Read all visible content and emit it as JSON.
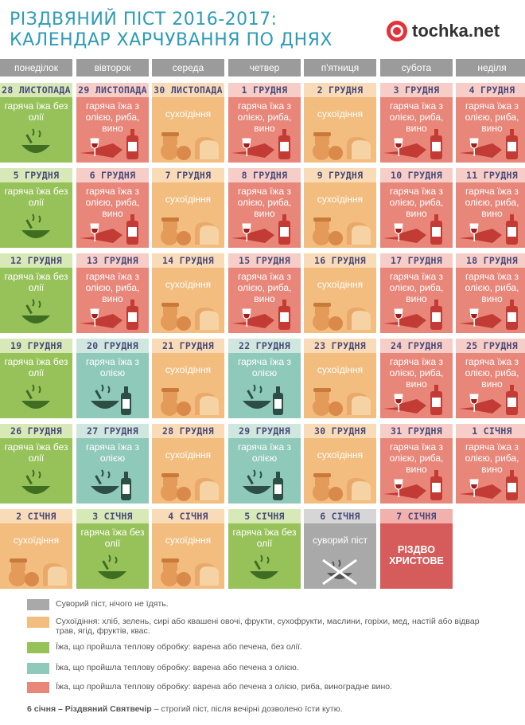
{
  "title": {
    "line1": "РІЗДВЯНИЙ ПІСТ 2016-2017:",
    "line2": "КАЛЕНДАР ХАРЧУВАННЯ ПО ДНЯХ"
  },
  "brand": {
    "name": "tochka.net"
  },
  "weekdays": [
    "понеділок",
    "вівторок",
    "середа",
    "четвер",
    "п'ятниця",
    "субота",
    "неділя"
  ],
  "labels": {
    "green": "гаряча їжа без олії",
    "red": "гаряча їжа з олією, риба, вино",
    "teal": "гаряча їжа з олією",
    "dry": "сухоїдіння",
    "gray": "суворий піст",
    "xmas": "РІЗДВО ХРИСТОВЕ"
  },
  "weeks": [
    [
      {
        "date": "28 ЛИСТОПАДА",
        "type": "green"
      },
      {
        "date": "29 ЛИСТОПАДА",
        "type": "red"
      },
      {
        "date": "30 ЛИСТОПАДА",
        "type": "dry"
      },
      {
        "date": "1 ГРУДНЯ",
        "type": "red"
      },
      {
        "date": "2 ГРУДНЯ",
        "type": "dry"
      },
      {
        "date": "3 ГРУДНЯ",
        "type": "red"
      },
      {
        "date": "4 ГРУДНЯ",
        "type": "red"
      }
    ],
    [
      {
        "date": "5 ГРУДНЯ",
        "type": "green"
      },
      {
        "date": "6 ГРУДНЯ",
        "type": "red"
      },
      {
        "date": "7 ГРУДНЯ",
        "type": "dry"
      },
      {
        "date": "8 ГРУДНЯ",
        "type": "red"
      },
      {
        "date": "9 ГРУДНЯ",
        "type": "dry"
      },
      {
        "date": "10 ГРУДНЯ",
        "type": "red"
      },
      {
        "date": "11 ГРУДНЯ",
        "type": "red"
      }
    ],
    [
      {
        "date": "12 ГРУДНЯ",
        "type": "green"
      },
      {
        "date": "13 ГРУДНЯ",
        "type": "red"
      },
      {
        "date": "14 ГРУДНЯ",
        "type": "dry"
      },
      {
        "date": "15 ГРУДНЯ",
        "type": "red"
      },
      {
        "date": "16 ГРУДНЯ",
        "type": "dry"
      },
      {
        "date": "17 ГРУДНЯ",
        "type": "red"
      },
      {
        "date": "18 ГРУДНЯ",
        "type": "red"
      }
    ],
    [
      {
        "date": "19 ГРУДНЯ",
        "type": "green"
      },
      {
        "date": "20 ГРУДНЯ",
        "type": "teal"
      },
      {
        "date": "21 ГРУДНЯ",
        "type": "dry"
      },
      {
        "date": "22 ГРУДНЯ",
        "type": "teal"
      },
      {
        "date": "23 ГРУДНЯ",
        "type": "dry"
      },
      {
        "date": "24 ГРУДНЯ",
        "type": "red"
      },
      {
        "date": "25 ГРУДНЯ",
        "type": "red"
      }
    ],
    [
      {
        "date": "26 ГРУДНЯ",
        "type": "green"
      },
      {
        "date": "27 ГРУДНЯ",
        "type": "teal"
      },
      {
        "date": "28 ГРУДНЯ",
        "type": "dry"
      },
      {
        "date": "29 ГРУДНЯ",
        "type": "teal"
      },
      {
        "date": "30 ГРУДНЯ",
        "type": "dry"
      },
      {
        "date": "31 ГРУДНЯ",
        "type": "red"
      },
      {
        "date": "1 СІЧНЯ",
        "type": "red"
      }
    ],
    [
      {
        "date": "2 СІЧНЯ",
        "type": "dry"
      },
      {
        "date": "3 СІЧНЯ",
        "type": "green"
      },
      {
        "date": "4 СІЧНЯ",
        "type": "dry"
      },
      {
        "date": "5 СІЧНЯ",
        "type": "green"
      },
      {
        "date": "6 СІЧНЯ",
        "type": "gray"
      },
      {
        "date": "7 СІЧНЯ",
        "type": "xmas"
      }
    ]
  ],
  "legend": [
    {
      "type": "gray",
      "text": "Суворий піст, нічого не їдять."
    },
    {
      "type": "dry",
      "text": "Сухоїдіння: хліб, зелень, сирі або квашені овочі, фрукти, сухофрукти, маслини, горіхи, мед, настій або відвар трав, ягід, фруктів, квас."
    },
    {
      "type": "green",
      "text": "Їжа, що пройшла теплову обробку: варена або печена, без олії."
    },
    {
      "type": "teal",
      "text": "Їжа, що пройшла теплову обробку: варена або печена з олією."
    },
    {
      "type": "red",
      "text": "Їжа, що пройшла теплову обробку: варена або печена з олією, риба, виноградне вино."
    }
  ],
  "note": {
    "bold": "6 січня – Різдвяний Святвечір",
    "text": " – строгий піст, після вечірні дозволено їсти кутю."
  },
  "colors": {
    "gray": "#a9a9a9",
    "dry": "#f2bd7e",
    "green": "#97c25a",
    "teal": "#8fc9b9",
    "red": "#e8867a",
    "xmas": "#d65c5c",
    "title": "#2e9bb8",
    "brand_red": "#e3323a",
    "header": "#9b9b9b"
  },
  "icons": {
    "green": "bowl-icon",
    "red": "fish-wine-icon",
    "teal": "bowl-bottle-icon",
    "dry": "bread-fruit-icon",
    "gray": "crossed-bowl-icon"
  }
}
